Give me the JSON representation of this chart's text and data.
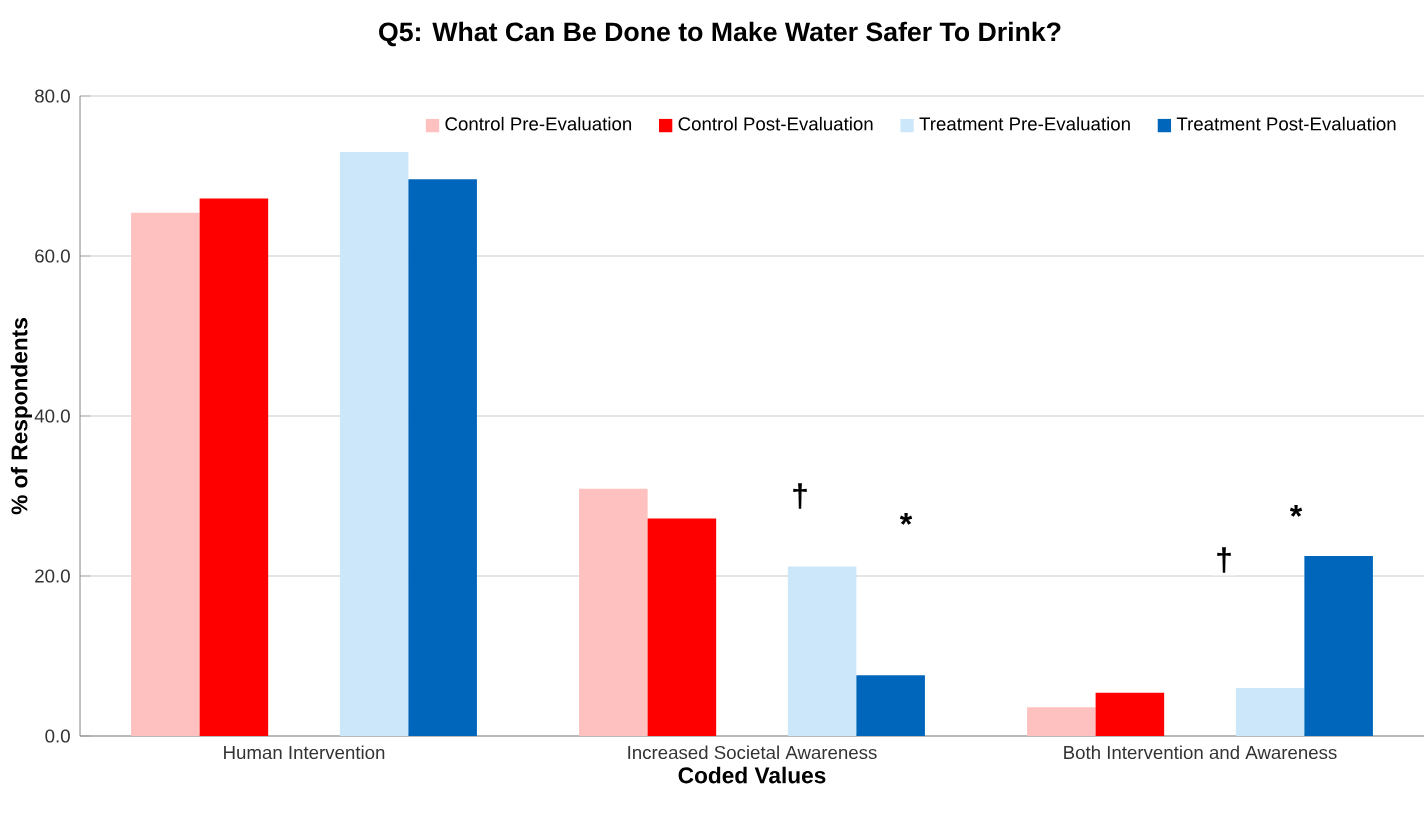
{
  "chart_data": {
    "type": "bar",
    "title": "Q5:  What Can Be Done to Make Water Safer To Drink?",
    "xlabel": "Coded Values",
    "ylabel": "% of Respondents",
    "categories": [
      "Human Intervention",
      "Increased Societal Awareness",
      "Both Intervention and Awareness"
    ],
    "series": [
      {
        "name": "Control Pre-Evaluation",
        "color": "#ffc0c0",
        "values": [
          65.4,
          30.9,
          3.6
        ]
      },
      {
        "name": "Control Post-Evaluation",
        "color": "#ff0000",
        "values": [
          67.2,
          27.2,
          5.4
        ]
      },
      {
        "name": "Treatment Pre-Evaluation",
        "color": "#cce6fa",
        "values": [
          73.0,
          21.2,
          6.0
        ]
      },
      {
        "name": "Treatment Post-Evaluation",
        "color": "#0066bb",
        "values": [
          69.6,
          7.6,
          22.5
        ]
      }
    ],
    "ylim": [
      0,
      80
    ],
    "yticks": [
      {
        "value": 0,
        "label": "0.0"
      },
      {
        "value": 20,
        "label": "20.0"
      },
      {
        "value": 40,
        "label": "40.0"
      },
      {
        "value": 60,
        "label": "60.0"
      },
      {
        "value": 80,
        "label": "80.0"
      }
    ],
    "grid": "y",
    "legend": "top right",
    "annotations": [
      "†",
      "*",
      "†",
      "*"
    ]
  }
}
